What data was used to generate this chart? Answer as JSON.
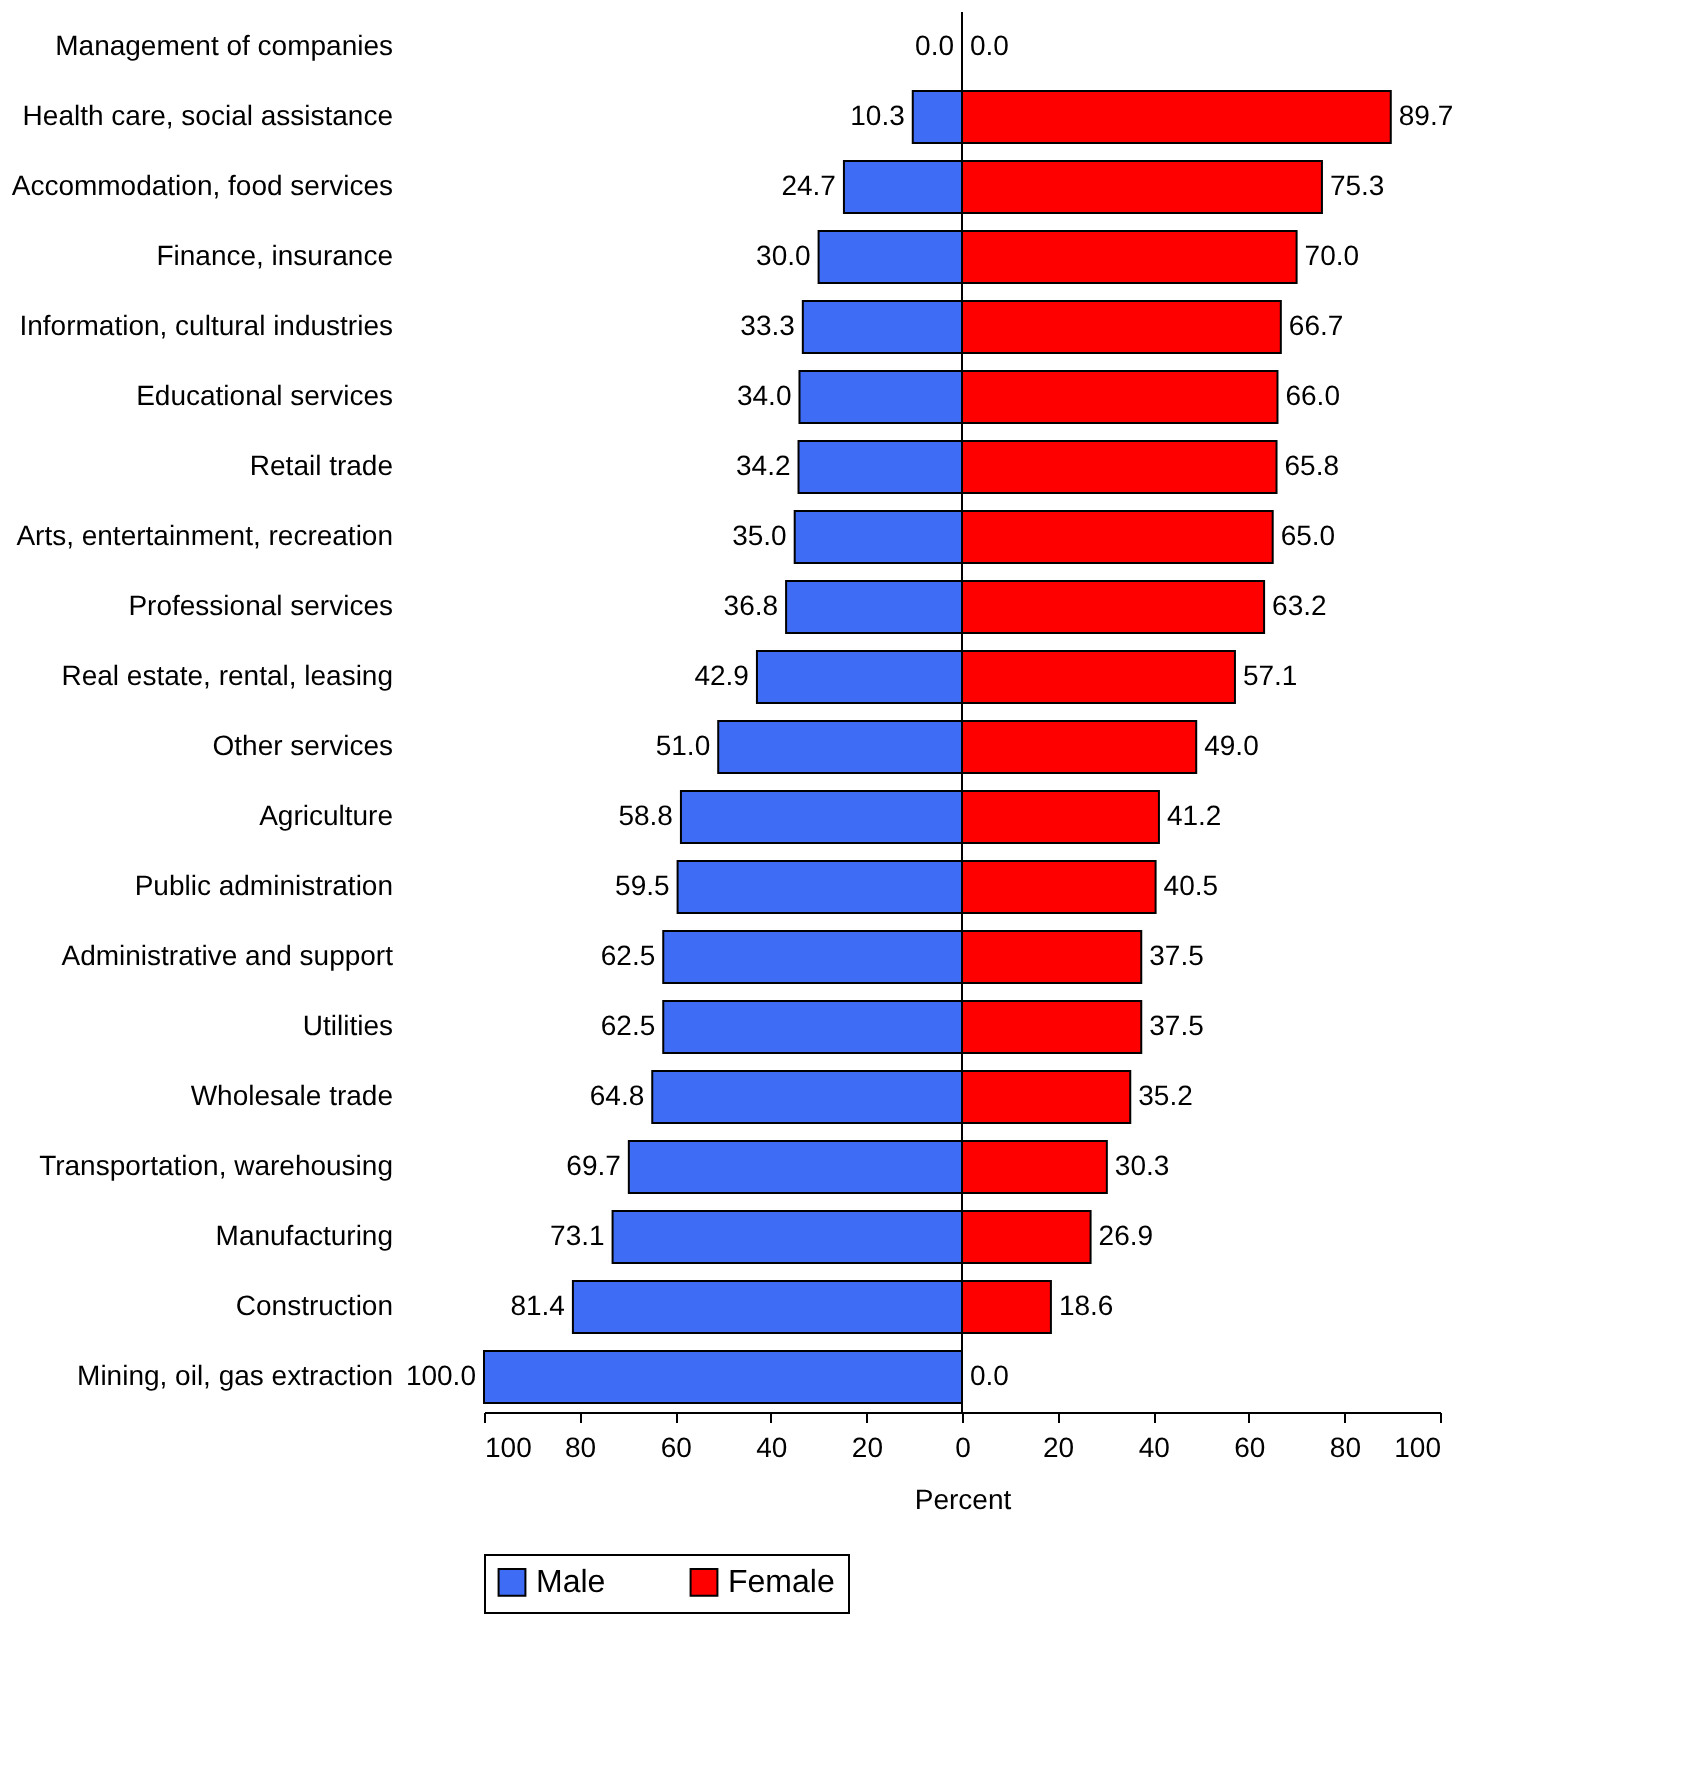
{
  "chart_data": {
    "type": "bar",
    "orientation": "horizontal",
    "xlabel": "Percent",
    "categories": [
      "Management of companies",
      "Health care, social assistance",
      "Accommodation, food services",
      "Finance, insurance",
      "Information, cultural industries",
      "Educational services",
      "Retail trade",
      "Arts, entertainment, recreation",
      "Professional services",
      "Real estate, rental, leasing",
      "Other services",
      "Agriculture",
      "Public administration",
      "Administrative and support",
      "Utilities",
      "Wholesale trade",
      "Transportation, warehousing",
      "Manufacturing",
      "Construction",
      "Mining, oil, gas extraction"
    ],
    "series": [
      {
        "name": "Male",
        "color": "#3f6cf4",
        "values": [
          0.0,
          10.3,
          24.7,
          30.0,
          33.3,
          34.0,
          34.2,
          35.0,
          36.8,
          42.9,
          51.0,
          58.8,
          59.5,
          62.5,
          62.5,
          64.8,
          69.7,
          73.1,
          81.4,
          100.0
        ],
        "base": [
          null,
          -10.3,
          -24.7,
          -30.0,
          -33.3,
          -34.0,
          -34.2,
          -35.0,
          -36.8,
          -42.9,
          -51.0,
          -58.8,
          -59.5,
          -62.5,
          -62.5,
          -64.8,
          -69.7,
          -73.1,
          -81.4,
          -100.0
        ],
        "value_labels": [
          "0.0",
          "10.3",
          "24.7",
          "30.0",
          "33.3",
          "34.0",
          "34.2",
          "35.0",
          "36.8",
          "42.9",
          "51.0",
          "58.8",
          "59.5",
          "62.5",
          "62.5",
          "64.8",
          "69.7",
          "73.1",
          "81.4",
          "100.0"
        ]
      },
      {
        "name": "Female",
        "color": "#ff0000",
        "values": [
          0.0,
          89.7,
          75.3,
          70.0,
          66.7,
          66.0,
          65.8,
          65.0,
          63.2,
          57.1,
          49.0,
          41.2,
          40.5,
          37.5,
          37.5,
          35.2,
          30.3,
          26.9,
          18.6,
          0.0
        ],
        "value_labels": [
          "0.0",
          "89.7",
          "75.3",
          "70.0",
          "66.7",
          "66.0",
          "65.8",
          "65.0",
          "63.2",
          "57.1",
          "49.0",
          "41.2",
          "40.5",
          "37.5",
          "37.5",
          "35.2",
          "30.3",
          "26.9",
          "18.6",
          "0.0"
        ]
      }
    ],
    "xlim": [
      -100,
      100
    ],
    "xticks": [
      {
        "value": -100,
        "label": "100"
      },
      {
        "value": -80,
        "label": "80"
      },
      {
        "value": -60,
        "label": "60"
      },
      {
        "value": -40,
        "label": "40"
      },
      {
        "value": -20,
        "label": "20"
      },
      0,
      20,
      40,
      60,
      80,
      100
    ],
    "ref_lines": [
      {
        "axis": "x",
        "value": 0,
        "color": "#000000"
      }
    ],
    "grid": false,
    "legend": "bottom"
  }
}
